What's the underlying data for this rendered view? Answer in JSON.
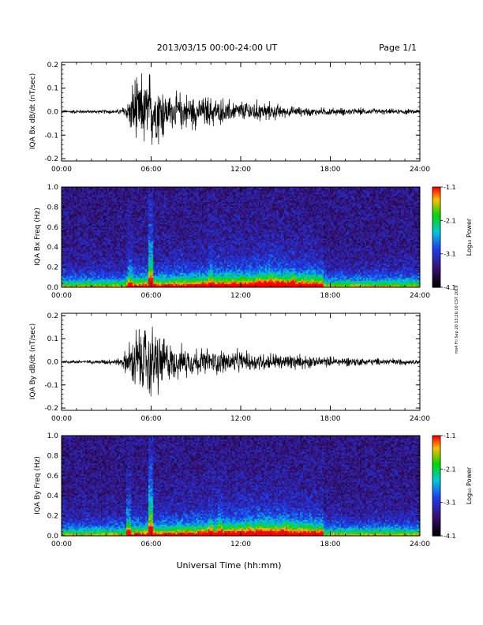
{
  "header": {
    "date_range": "2013/03/15  00:00-24:00 UT",
    "page": "Page 1/1"
  },
  "footer": {
    "xlabel": "Universal Time (hh:mm)"
  },
  "side_note": "ms4 Fri Sep 20 13:26:10 CST 2019",
  "colorbar": {
    "label": "Log₁₀ Power",
    "ticks": [
      "-1.1",
      "-2.1",
      "-3.1",
      "-4.1"
    ],
    "colors": [
      "#ff0000",
      "#ffb000",
      "#00dd00",
      "#00cccc",
      "#1a44ff",
      "#3a1a9a",
      "#000000"
    ]
  },
  "chart_data": [
    {
      "type": "line",
      "ylabel": "IQA Bx dB/dt (nT/sec)",
      "xticks": [
        "00:00",
        "06:00",
        "12:00",
        "18:00",
        "24:00"
      ],
      "yticks": [
        "-0.2",
        "-0.1",
        "0.0",
        "0.1",
        "0.2"
      ],
      "xlim": [
        0,
        24
      ],
      "ylim": [
        -0.21,
        0.21
      ],
      "series": [
        {
          "x": [
            0,
            2,
            4,
            4.5,
            5,
            5.5,
            6,
            6.5,
            7,
            8,
            9,
            10,
            11,
            12,
            13,
            14,
            15,
            16,
            18,
            20,
            22,
            24
          ],
          "amplitude": [
            0.01,
            0.01,
            0.015,
            0.08,
            0.21,
            0.21,
            0.21,
            0.2,
            0.12,
            0.1,
            0.09,
            0.08,
            0.07,
            0.06,
            0.06,
            0.05,
            0.03,
            0.025,
            0.02,
            0.02,
            0.015,
            0.015
          ]
        }
      ]
    },
    {
      "type": "heatmap",
      "ylabel": "IQA Bx Freq (Hz)",
      "xticks": [
        "00:00",
        "06:00",
        "12:00",
        "18:00",
        "24:00"
      ],
      "yticks": [
        "0.0",
        "0.2",
        "0.4",
        "0.6",
        "0.8",
        "1.0"
      ],
      "xlim": [
        0,
        24
      ],
      "ylim": [
        0,
        1
      ],
      "zlim": [
        -4.1,
        -1.1
      ]
    },
    {
      "type": "line",
      "ylabel": "IQA By dB/dt (nT/sec)",
      "xticks": [
        "00:00",
        "06:00",
        "12:00",
        "18:00",
        "24:00"
      ],
      "yticks": [
        "-0.2",
        "-0.1",
        "0.0",
        "0.1",
        "0.2"
      ],
      "xlim": [
        0,
        24
      ],
      "ylim": [
        -0.21,
        0.21
      ],
      "series": [
        {
          "x": [
            0,
            2,
            4,
            4.5,
            5,
            5.5,
            6,
            6.5,
            7,
            8,
            9,
            10,
            11,
            12,
            13,
            14,
            15,
            16,
            17,
            18,
            20,
            22,
            24
          ],
          "amplitude": [
            0.01,
            0.01,
            0.02,
            0.1,
            0.2,
            0.21,
            0.21,
            0.21,
            0.12,
            0.09,
            0.08,
            0.08,
            0.07,
            0.06,
            0.05,
            0.05,
            0.05,
            0.04,
            0.035,
            0.03,
            0.025,
            0.02,
            0.015
          ]
        }
      ]
    },
    {
      "type": "heatmap",
      "ylabel": "IQA By Freq (Hz)",
      "xticks": [
        "00:00",
        "06:00",
        "12:00",
        "18:00",
        "24:00"
      ],
      "yticks": [
        "0.0",
        "0.2",
        "0.4",
        "0.6",
        "0.8",
        "1.0"
      ],
      "xlim": [
        0,
        24
      ],
      "ylim": [
        0,
        1
      ],
      "zlim": [
        -4.1,
        -1.1
      ]
    }
  ]
}
